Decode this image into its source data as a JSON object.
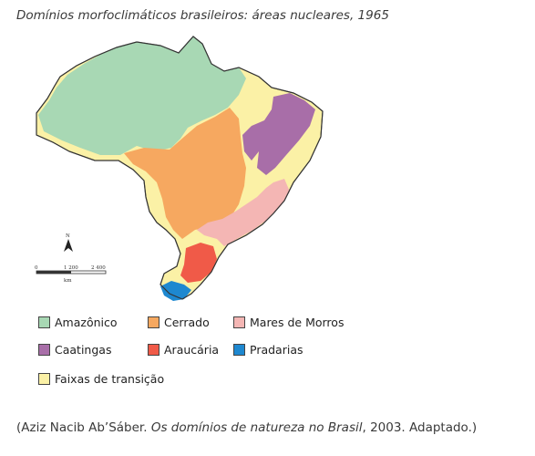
{
  "title": "Domínios morfoclimáticos brasileiros: áreas nucleares, 1965",
  "compass": {
    "label": "N",
    "icon": "north-arrow-icon"
  },
  "scale_bar": {
    "ticks": [
      "0",
      "1 200",
      "2 400"
    ],
    "unit": "km"
  },
  "legend": [
    {
      "label": "Amazônico",
      "color": "#a8d8b4"
    },
    {
      "label": "Cerrado",
      "color": "#f6a860"
    },
    {
      "label": "Mares de Morros",
      "color": "#f4b6b4"
    },
    {
      "label": "Caatingas",
      "color": "#a86ea8"
    },
    {
      "label": "Araucária",
      "color": "#f05a48"
    },
    {
      "label": "Pradarias",
      "color": "#1e88d0"
    },
    {
      "label": "Faixas de transição",
      "color": "#fbf1a6"
    }
  ],
  "caption": {
    "prefix": "(Aziz Nacib Ab’Sáber. ",
    "work": "Os domínios de natureza no Brasil",
    "suffix": ", 2003. Adaptado.)"
  }
}
